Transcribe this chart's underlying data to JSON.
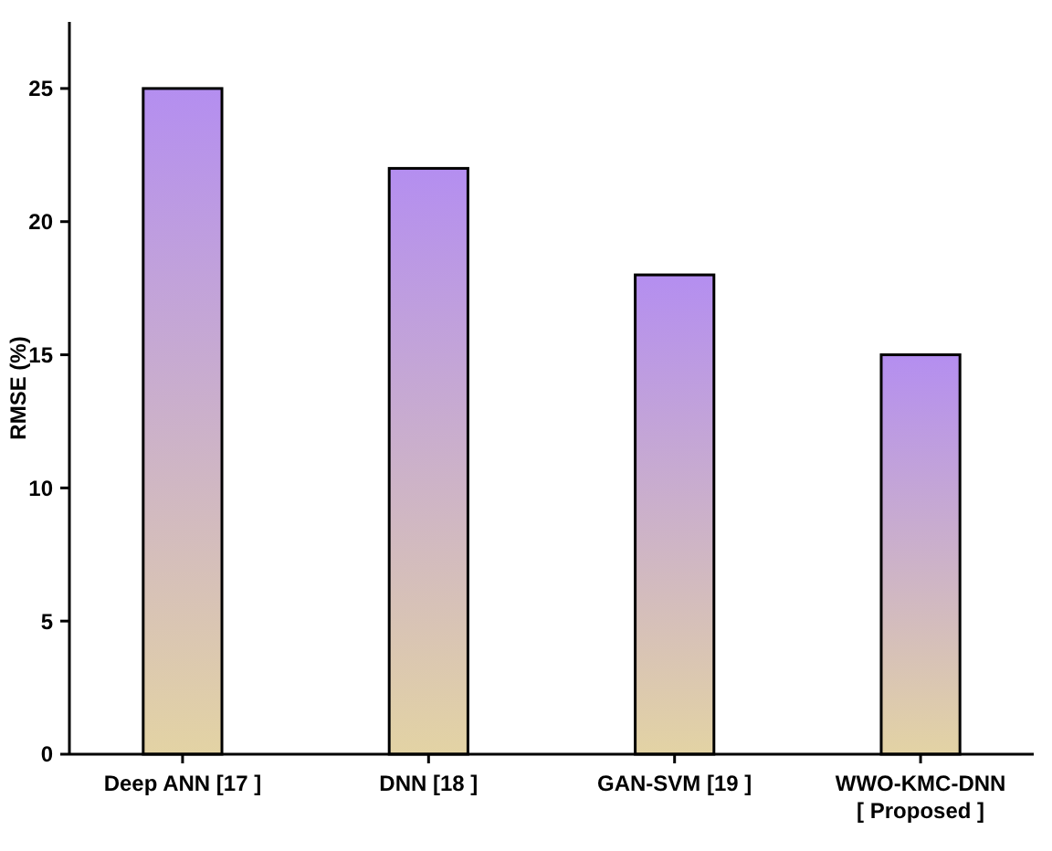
{
  "chart_data": {
    "type": "bar",
    "ylabel": "RMSE (%)",
    "categories": [
      "Deep ANN [17 ]",
      "DNN [18 ]",
      "GAN-SVM [19 ]",
      "WWO-KMC-DNN\n[ Proposed ]"
    ],
    "values": [
      25,
      22,
      18,
      15
    ],
    "color": "#b48ef0",
    "ylim": [
      0,
      27.5
    ],
    "yticks": [
      0,
      5,
      10,
      15,
      20,
      25
    ],
    "grid": false
  }
}
